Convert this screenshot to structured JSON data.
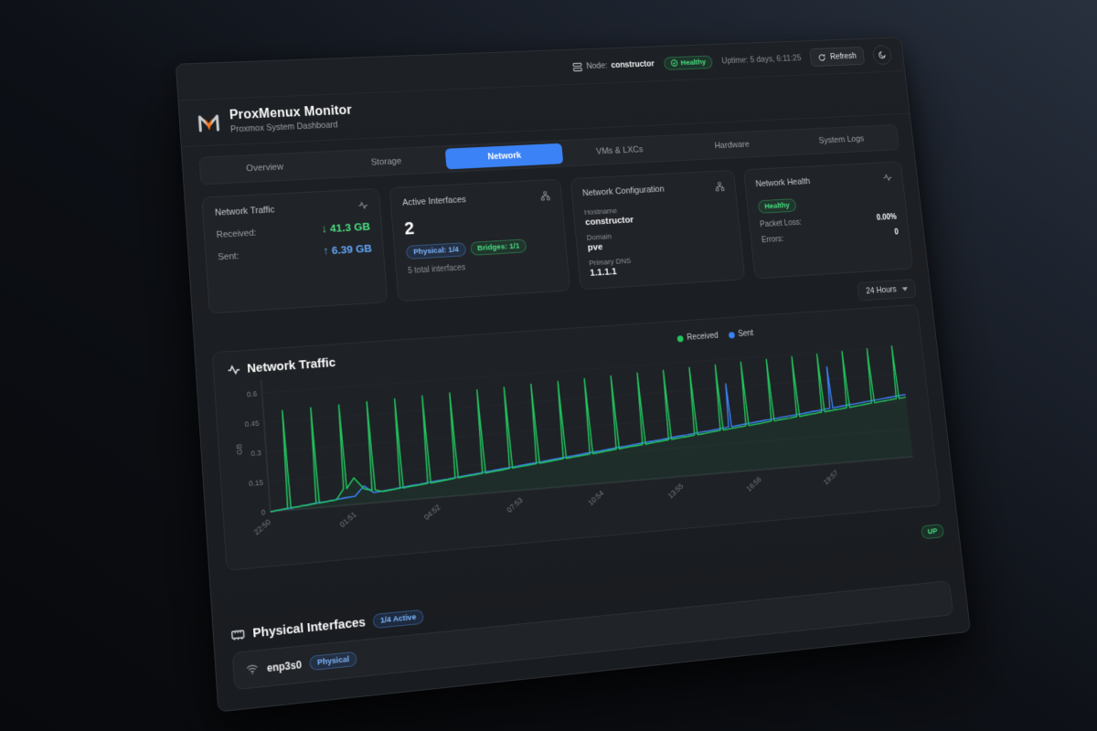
{
  "topbar": {
    "node_prefix": "Node:",
    "node_name": "constructor",
    "health_badge": "Healthy",
    "uptime": "Uptime: 5 days, 6:11:25",
    "refresh_label": "Refresh"
  },
  "header": {
    "title": "ProxMenux Monitor",
    "subtitle": "Proxmox System Dashboard"
  },
  "tabs": [
    {
      "label": "Overview"
    },
    {
      "label": "Storage"
    },
    {
      "label": "Network"
    },
    {
      "label": "VMs & LXCs"
    },
    {
      "label": "Hardware"
    },
    {
      "label": "System Logs"
    }
  ],
  "cards": {
    "traffic": {
      "title": "Network Traffic",
      "received_label": "Received:",
      "received_value": "↓ 41.3 GB",
      "sent_label": "Sent:",
      "sent_value": "↑ 6.39 GB"
    },
    "interfaces": {
      "title": "Active Interfaces",
      "count": "2",
      "physical_badge": "Physical: 1/4",
      "bridges_badge": "Bridges: 1/1",
      "total": "5 total interfaces"
    },
    "config": {
      "title": "Network Configuration",
      "hostname_label": "Hostname",
      "hostname": "constructor",
      "domain_label": "Domain",
      "domain": "pve",
      "dns_label": "Primary DNS",
      "dns": "1.1.1.1"
    },
    "health": {
      "title": "Network Health",
      "status": "Healthy",
      "packet_loss_label": "Packet Loss:",
      "packet_loss": "0.00%",
      "errors_label": "Errors:",
      "errors": "0"
    }
  },
  "range_select": {
    "value": "24 Hours"
  },
  "status_row": {
    "up_badge": "UP"
  },
  "physical_section": {
    "title": "Physical Interfaces",
    "badge": "1/4 Active"
  },
  "interface_row": {
    "name": "enp3s0",
    "badge": "Physical"
  },
  "chart_data": {
    "type": "line",
    "title": "Network Traffic",
    "ylabel": "GB",
    "xlabel": "",
    "x_labels": [
      "22:50",
      "01:51",
      "04:52",
      "07:53",
      "10:54",
      "13:55",
      "16:56",
      "19:57"
    ],
    "yticks": [
      0,
      0.15,
      0.3,
      0.45,
      0.6
    ],
    "ylim": [
      0,
      0.65
    ],
    "grid": true,
    "legend_position": "top-right",
    "series": [
      {
        "name": "Received",
        "color": "#22c55e",
        "values": [
          0,
          0.005,
          0.503,
          0.014,
          0.018,
          0.508,
          0.027,
          0.032,
          0.512,
          0.135,
          0.075,
          0.517,
          0.054,
          0.059,
          0.521,
          0.068,
          0.072,
          0.526,
          0.081,
          0.086,
          0.53,
          0.095,
          0.099,
          0.535,
          0.108,
          0.113,
          0.539,
          0.122,
          0.126,
          0.544,
          0.135,
          0.14,
          0.548,
          0.149,
          0.153,
          0.553,
          0.162,
          0.167,
          0.557,
          0.176,
          0.18,
          0.562,
          0.189,
          0.194,
          0.566,
          0.203,
          0.207,
          0.571,
          0.216,
          0.221,
          0.575,
          0.23,
          0.234,
          0.58,
          0.243,
          0.248,
          0.584,
          0.257,
          0.261,
          0.589,
          0.27,
          0.275,
          0.593,
          0.284,
          0.288,
          0.598,
          0.297,
          0.302,
          0.602,
          0.311,
          0.315,
          0.607,
          0.324
        ]
      },
      {
        "name": "Sent",
        "color": "#3b82f6",
        "values": [
          0,
          0.005,
          0.009,
          0.014,
          0.019,
          0.024,
          0.028,
          0.033,
          0.038,
          0.042,
          0.09,
          0.052,
          0.056,
          0.061,
          0.066,
          0.071,
          0.075,
          0.08,
          0.085,
          0.089,
          0.094,
          0.099,
          0.103,
          0.108,
          0.113,
          0.118,
          0.122,
          0.127,
          0.132,
          0.136,
          0.141,
          0.146,
          0.15,
          0.155,
          0.16,
          0.165,
          0.169,
          0.174,
          0.179,
          0.183,
          0.188,
          0.193,
          0.197,
          0.202,
          0.207,
          0.212,
          0.216,
          0.221,
          0.226,
          0.23,
          0.235,
          0.47,
          0.244,
          0.249,
          0.254,
          0.259,
          0.263,
          0.268,
          0.273,
          0.277,
          0.282,
          0.287,
          0.291,
          0.52,
          0.301,
          0.306,
          0.31,
          0.315,
          0.32,
          0.324,
          0.329,
          0.334,
          0.338
        ]
      }
    ]
  }
}
